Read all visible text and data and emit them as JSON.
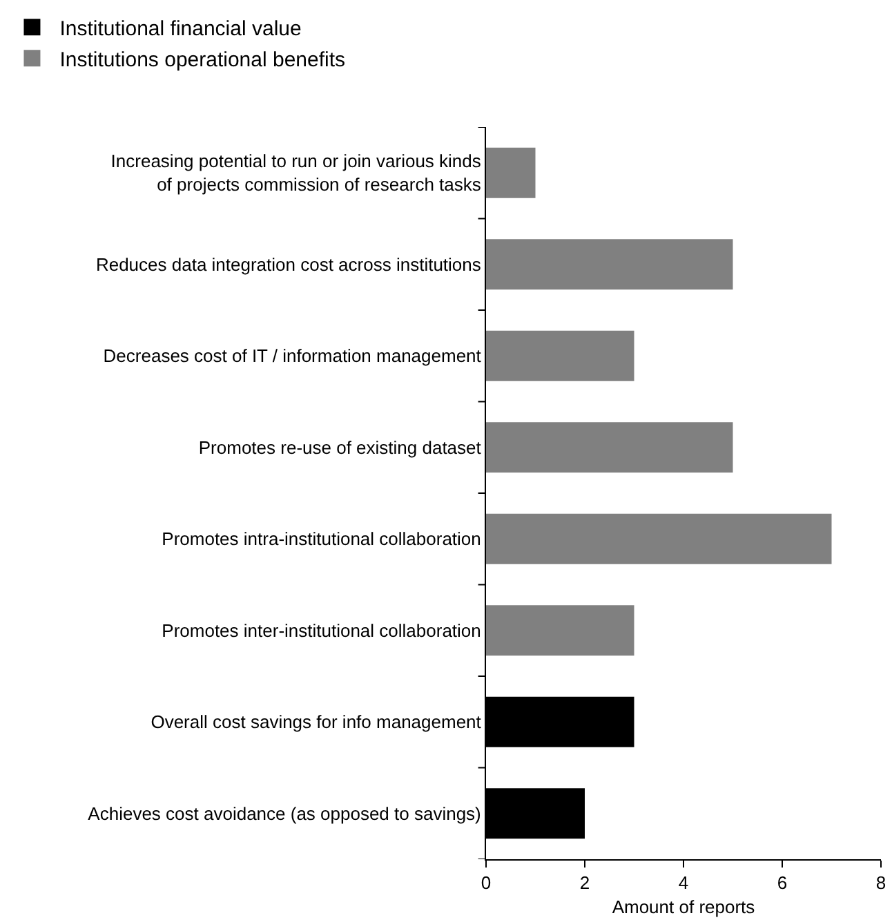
{
  "chart_data": {
    "type": "bar",
    "orientation": "horizontal",
    "categories": [
      "Increasing potential to run or join various kinds of projects commission of research tasks",
      "Reduces data integration cost across institutions",
      "Decreases cost of IT / information management",
      "Promotes re-use of existing dataset",
      "Promotes intra-institutional collaboration",
      "Promotes inter-institutional collaboration",
      "Overall cost savings for info management",
      "Achieves cost avoidance (as opposed to savings)"
    ],
    "series": [
      {
        "name": "Institutional financial value",
        "color": "#000000",
        "values": [
          null,
          null,
          null,
          null,
          null,
          null,
          3,
          2
        ]
      },
      {
        "name": "Institutions operational benefits",
        "color": "#808080",
        "values": [
          1,
          5,
          3,
          5,
          7,
          3,
          null,
          null
        ]
      }
    ],
    "xlim": [
      0,
      8
    ],
    "xticks": [
      0,
      2,
      4,
      6,
      8
    ],
    "xlabel": "Amount of reports",
    "grid": false,
    "legend": "top left"
  }
}
